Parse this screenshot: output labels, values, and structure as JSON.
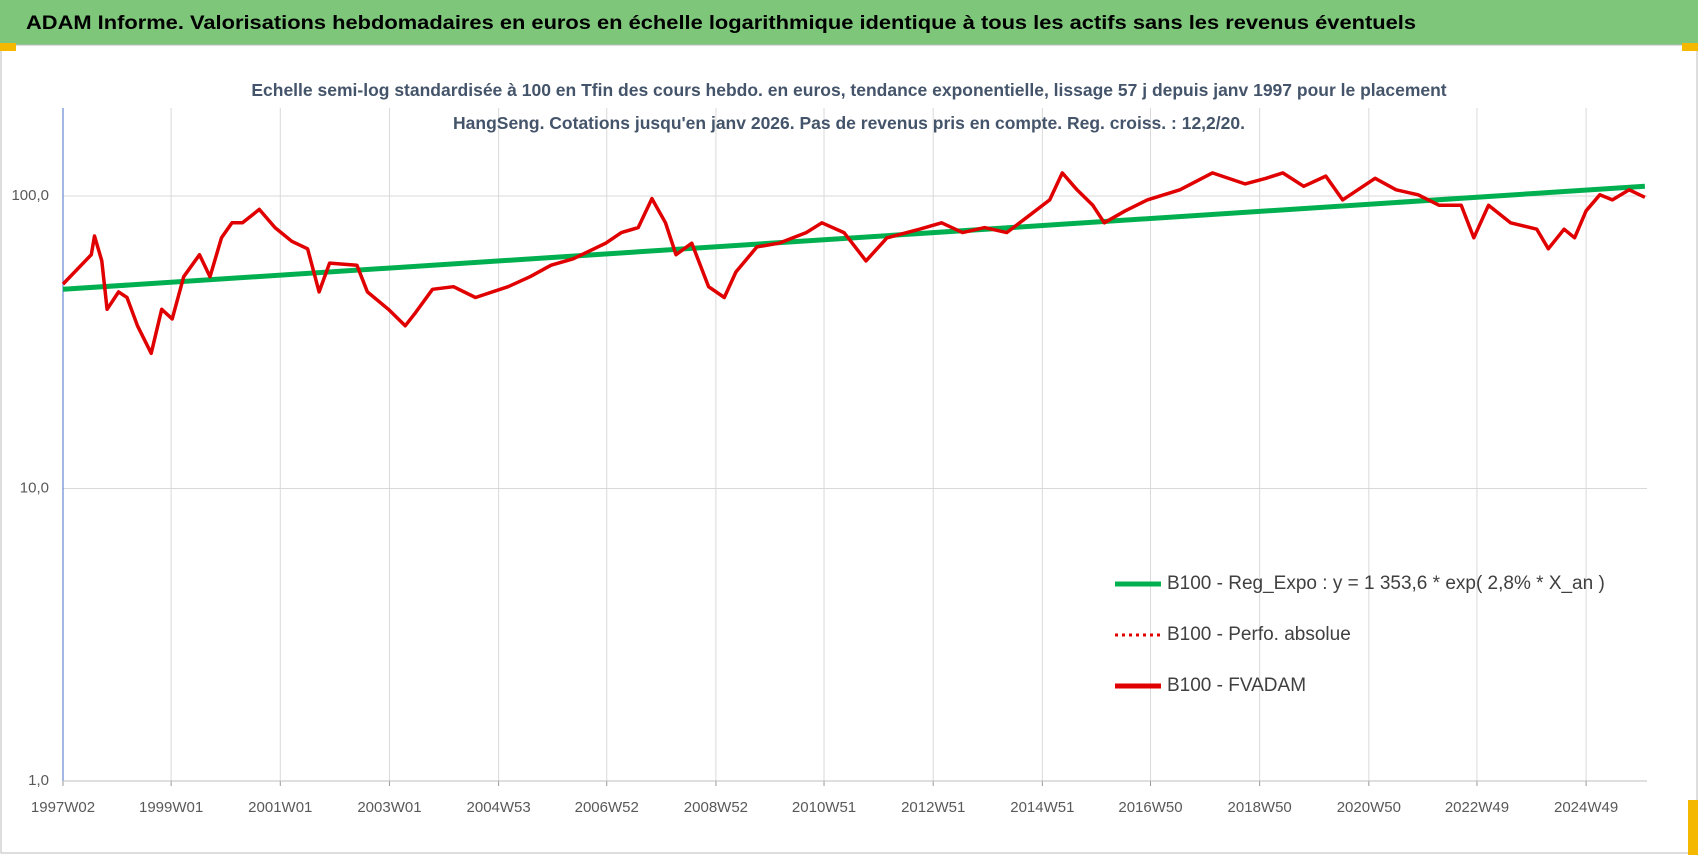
{
  "header": {
    "title": "ADAM Informe. Valorisations hebdomadaires en euros en échelle logarithmique identique à tous les actifs sans les revenus éventuels"
  },
  "chart_data": {
    "type": "line",
    "subtitle": "Echelle semi-log standardisée à 100 en Tfin des cours hebdo. en euros, tendance exponentielle, lissage 57 j depuis janv 1997 pour le placement HangSeng. Cotations jusqu'en janv 2026. Pas de revenus pris en compte. Reg. croiss. : 12,2/20.",
    "log_y": true,
    "grid": true,
    "legend": "lower right",
    "xlim": [
      "1997W02",
      "2026W03"
    ],
    "xticks": [
      "1997W02",
      "1999W01",
      "2001W01",
      "2003W01",
      "2004W53",
      "2006W52",
      "2008W52",
      "2010W51",
      "2012W51",
      "2014W51",
      "2016W50",
      "2018W50",
      "2020W50",
      "2022W49",
      "2024W49"
    ],
    "ylim": [
      1,
      200
    ],
    "yticks": [
      {
        "value": 1,
        "label": "1,0"
      },
      {
        "value": 10,
        "label": "10,0"
      },
      {
        "value": 100,
        "label": "100,0"
      }
    ],
    "series": [
      {
        "name": "B100 - Reg_Expo : y = 1 353,6 * exp( 2,8% *  X_an )",
        "color": "#00b050",
        "style": "solid",
        "x": [
          "1997W02",
          "2026W01"
        ],
        "values": [
          48,
          108
        ]
      },
      {
        "name": "B100 - Perfo. absolue",
        "color": "#e00000",
        "style": "dotted"
      },
      {
        "name": "B100 - FVADAM",
        "color": "#e00000",
        "style": "solid",
        "x": [
          "1997W02",
          "1997W29",
          "1997W32",
          "1997W39",
          "1997W44",
          "1998W03",
          "1998W11",
          "1998W21",
          "1998W34",
          "1998W44",
          "1999W02",
          "1999W13",
          "1999W28",
          "1999W38",
          "1999W49",
          "2000W07",
          "2000W17",
          "2000W33",
          "2000W48",
          "2001W12",
          "2001W27",
          "2001W38",
          "2001W48",
          "2002W22",
          "2002W32",
          "2002W52",
          "2003W16",
          "2003W26",
          "2003W42",
          "2004W10",
          "2004W31",
          "2005W10",
          "2005W31",
          "2005W51",
          "2006W20",
          "2006W51",
          "2007W14",
          "2007W30",
          "2007W43",
          "2008W04",
          "2008W14",
          "2008W29",
          "2008W45",
          "2009W08",
          "2009W19",
          "2009W39",
          "2010W08",
          "2010W34",
          "2010W49",
          "2011W18",
          "2011W39",
          "2012W07",
          "2012W38",
          "2013W07",
          "2013W27",
          "2013W48",
          "2014W17",
          "2014W37",
          "2015W06",
          "2015W18",
          "2015W32",
          "2015W47",
          "2016W06",
          "2016W26",
          "2016W47",
          "2017W26",
          "2018W05",
          "2018W36",
          "2019W04",
          "2019W20",
          "2019W40",
          "2020W09",
          "2020W25",
          "2021W04",
          "2021W24",
          "2021W45",
          "2022W13",
          "2022W34",
          "2022W46",
          "2023W08",
          "2023W29",
          "2024W02",
          "2024W13",
          "2024W28",
          "2024W38",
          "2024W49",
          "2025W10",
          "2025W22",
          "2025W38",
          "2026W01"
        ],
        "values": [
          50,
          63,
          73,
          60,
          41,
          47,
          45,
          36,
          29,
          41,
          38,
          53,
          63,
          53,
          72,
          81,
          81,
          90,
          78,
          70,
          66,
          47,
          59,
          58,
          47,
          41,
          36,
          40,
          48,
          49,
          45,
          49,
          53,
          58,
          61,
          69,
          75,
          78,
          98,
          81,
          63,
          69,
          49,
          45,
          55,
          67,
          69,
          75,
          81,
          75,
          60,
          72,
          77,
          81,
          75,
          78,
          75,
          85,
          97,
          120,
          105,
          93,
          81,
          89,
          97,
          105,
          120,
          110,
          115,
          120,
          108,
          117,
          97,
          115,
          105,
          101,
          93,
          93,
          72,
          93,
          81,
          77,
          66,
          77,
          72,
          89,
          101,
          97,
          105,
          99
        ]
      }
    ]
  }
}
